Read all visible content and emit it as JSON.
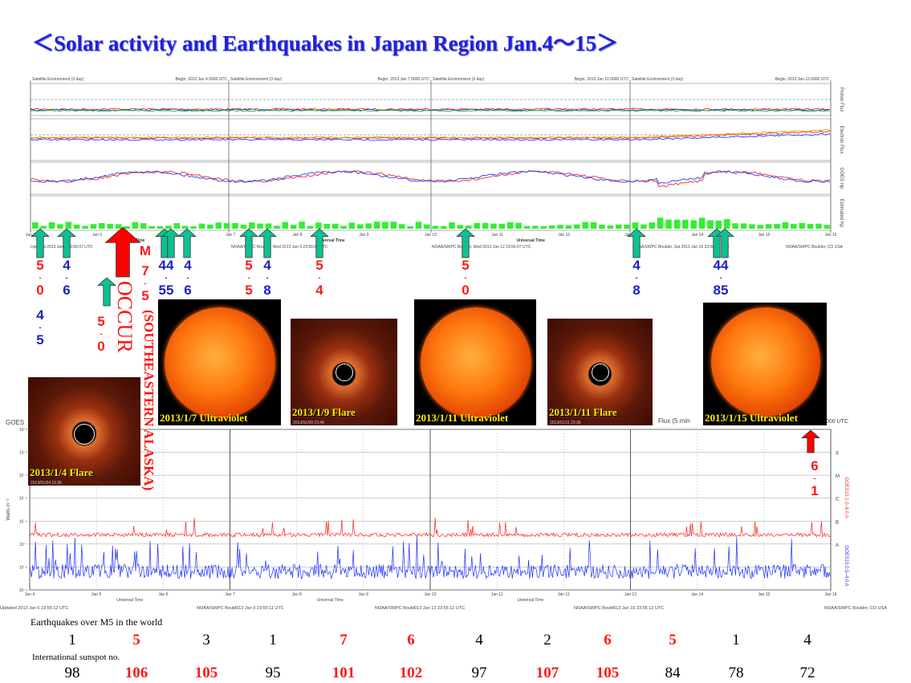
{
  "title": "＜Solar activity and Earthquakes  in Japan Region Jan.4～15＞",
  "top_chart": {
    "headers": [
      "Satellite Environment (3 day)",
      "Begin: 2013 Jan 4 0000 UTC",
      "Satellite Environment (3 day)",
      "Begin: 2013 Jan 7 0000 UTC",
      "Satellite Environment (3 day)",
      "Begin: 2013 Jan 10 0000 UTC",
      "Satellite Environment (3 day)",
      "Begin: 2013 Jan 13 0000 UTC"
    ],
    "panel_labels": [
      "Proton Flux",
      "Electron Flux",
      "GOES Hp",
      "Estimated Kp"
    ],
    "x_ticks": [
      "Jan 4",
      "Jan 5",
      "Jan 6",
      "Jan 7",
      "Jan 8",
      "Jan 9",
      "Jan 10",
      "Jan 11",
      "Jan 12",
      "Jan 13",
      "Jan 14",
      "Jan 15",
      "Jan 16"
    ],
    "axis_label": "Universal Time",
    "footers": [
      "Updated 2013 Jan 6 23:56:07 UTC",
      "NOAA/SWPC Boulder, Wed 2013 Jan 9 23:56:08 UTC",
      "NOAA/SWPC Boulder, Wed 2013 Jan 12 23:56:07 UTC",
      "NOAA/SWPC Boulder, Sat 2013 Jan 15 23:56:07 UTC",
      "NOAA/SWPC Boulder, CO USA"
    ]
  },
  "quakes": [
    {
      "top": "5",
      "bottom": "0",
      "color": "red"
    },
    {
      "top": "4",
      "bottom": "5",
      "color": "blue"
    },
    {
      "top": "4",
      "bottom": "6",
      "color": "blue"
    },
    {
      "top": "5",
      "bottom": "0",
      "color": "red"
    },
    {
      "top": "7",
      "bottom": "5",
      "color": "red",
      "prefix": "M"
    },
    {
      "top": "44",
      "bottom": "55",
      "color": "blue"
    },
    {
      "top": "4",
      "bottom": "6",
      "color": "blue"
    },
    {
      "top": "5",
      "bottom": "5",
      "color": "red"
    },
    {
      "top": "4",
      "bottom": "8",
      "color": "blue"
    },
    {
      "top": "5",
      "bottom": "4",
      "color": "red"
    },
    {
      "top": "5",
      "bottom": "0",
      "color": "red"
    },
    {
      "top": "4",
      "bottom": "8",
      "color": "blue"
    },
    {
      "top": "44",
      "bottom": "85",
      "color": "blue"
    },
    {
      "top": "6",
      "bottom": "1",
      "color": "red"
    }
  ],
  "big_event": {
    "occur": "OCCUR",
    "place": "(SOUTHEASTERN ALASKA)"
  },
  "images": [
    {
      "caption": "2013/1/4 Flare",
      "stamp": "2013/01/04 15:36"
    },
    {
      "caption": "2013/1/7 Ultraviolet"
    },
    {
      "caption": "2013/1/9 Flare",
      "stamp": "2013/01/09 23:48"
    },
    {
      "caption": "2013/1/11 Ultraviolet"
    },
    {
      "caption": "2013/1/11 Flare",
      "stamp": "2013/01/11 23:36"
    },
    {
      "caption": "2013/1/15 Ultraviolet"
    }
  ],
  "xray_chart": {
    "header_left": "GOES",
    "header_mid": "Flux (5 min",
    "header_right": "0000 UTC",
    "y_label": "Watts m⁻²",
    "y_ticks": [
      "10⁻²",
      "10⁻³",
      "10⁻⁴",
      "10⁻⁵",
      "10⁻⁶",
      "10⁻⁷",
      "10⁻⁸",
      "10⁻⁹"
    ],
    "classes": [
      "X",
      "M",
      "C",
      "B",
      "A"
    ],
    "series": [
      "GOES15 1.0–8.0 A",
      "GOES15 0.5–4.0 A"
    ],
    "x_ticks": [
      "Jan 4",
      "Jan 5",
      "Jan 6",
      "Jan 7",
      "Jan 8",
      "Jan 9",
      "Jan 10",
      "Jan 11",
      "Jan 12",
      "Jan 13",
      "Jan 14",
      "Jan 15",
      "Jan 16"
    ],
    "axis_label": "Universal Time",
    "footers": [
      "Updated 2013 Jan  6 23:55:12 UTC",
      "NOAA/SWPC Bould013 Jan  9 23:55:11 UTC",
      "NOAA/SWPC Bould013 Jan 12 23:55:12 UTC",
      "NOAA/SWPC Bould013 Jan 15 23:55:12 UTC",
      "NOAA/SWPC Boulder, CO USA"
    ]
  },
  "table": {
    "eq_label": "Earthquakes over M5 in the world",
    "eq": [
      "1",
      "5",
      "3",
      "1",
      "7",
      "6",
      "4",
      "2",
      "6",
      "5",
      "1",
      "4"
    ],
    "eq_hl": [
      false,
      true,
      false,
      false,
      true,
      true,
      false,
      false,
      true,
      true,
      false,
      false
    ],
    "ss_label": "International sunspot no.",
    "ss": [
      "98",
      "106",
      "105",
      "95",
      "101",
      "102",
      "97",
      "107",
      "105",
      "84",
      "78",
      "72"
    ],
    "ss_hl": [
      false,
      true,
      true,
      false,
      true,
      true,
      false,
      true,
      true,
      false,
      false,
      false
    ]
  },
  "colors": {
    "title": "#2020e0",
    "arrow_green": "#10c090",
    "arrow_red": "#ff0000",
    "kp_bar": "#33ee33"
  }
}
